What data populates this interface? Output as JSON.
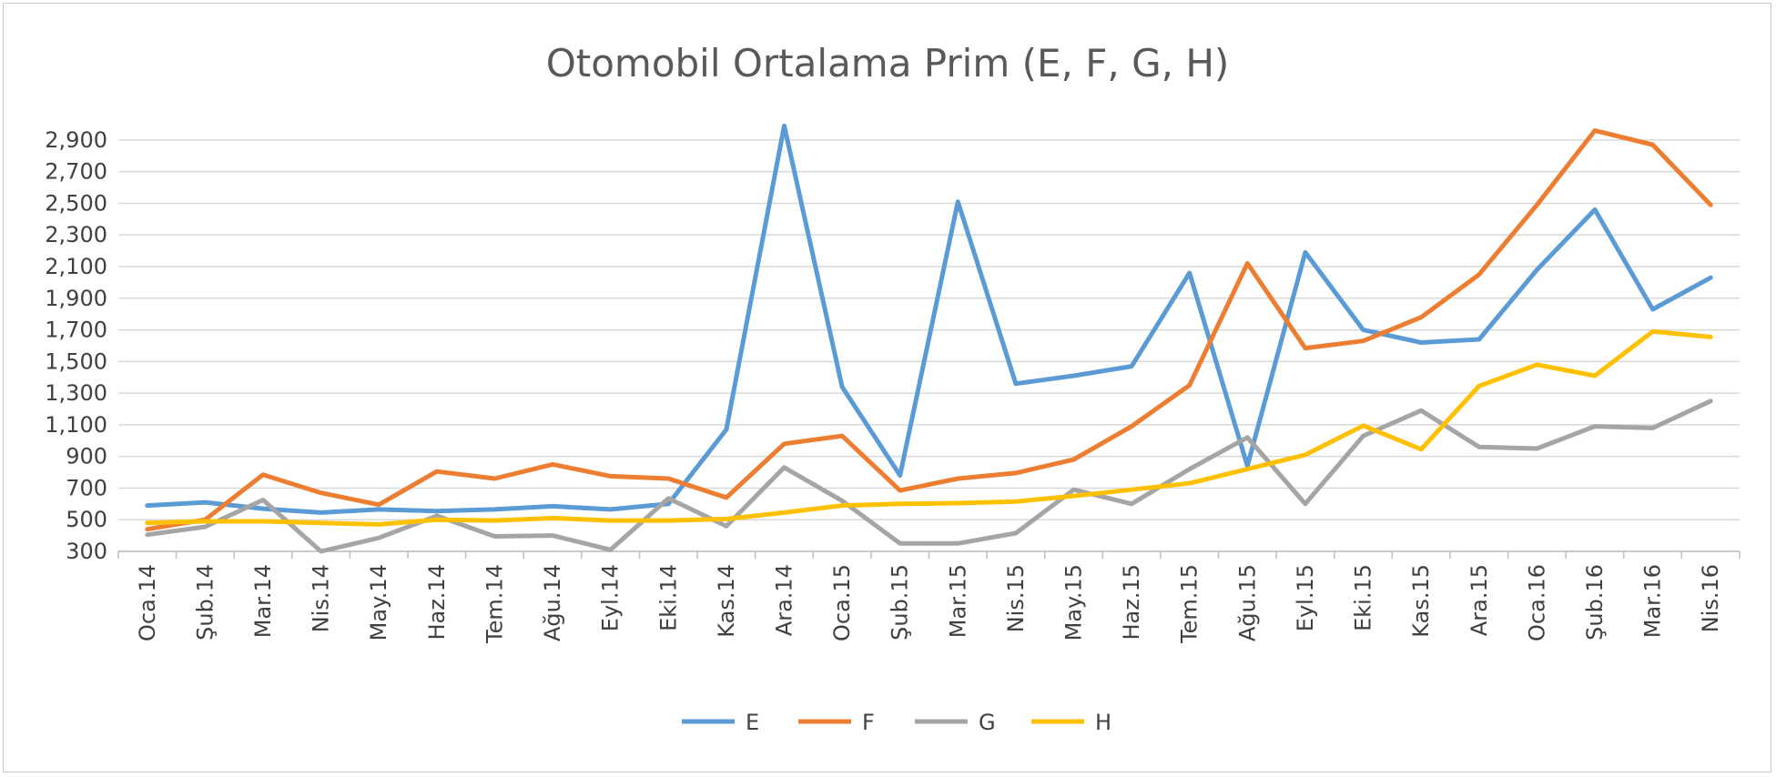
{
  "chart_data": {
    "type": "line",
    "title": "Otomobil Ortalama Prim (E, F, G, H)",
    "xlabel": "",
    "ylabel": "",
    "ylim": [
      300,
      3000
    ],
    "yticks": [
      300,
      500,
      700,
      900,
      1100,
      1300,
      1500,
      1700,
      1900,
      2100,
      2300,
      2500,
      2700,
      2900
    ],
    "ytick_labels": [
      "300",
      "500",
      "700",
      "900",
      "1,100",
      "1,300",
      "1,500",
      "1,700",
      "1,900",
      "2,100",
      "2,300",
      "2,500",
      "2,700",
      "2,900"
    ],
    "grid": true,
    "legend_position": "bottom",
    "categories": [
      "Oca.14",
      "Şub.14",
      "Mar.14",
      "Nis.14",
      "May.14",
      "Haz.14",
      "Tem.14",
      "Ağu.14",
      "Eyl.14",
      "Eki.14",
      "Kas.14",
      "Ara.14",
      "Oca.15",
      "Şub.15",
      "Mar.15",
      "Nis.15",
      "May.15",
      "Haz.15",
      "Tem.15",
      "Ağu.15",
      "Eyl.15",
      "Eki.15",
      "Kas.15",
      "Ara.15",
      "Oca.16",
      "Şub.16",
      "Mar.16",
      "Nis.16"
    ],
    "series": [
      {
        "name": "E",
        "color": "#5B9BD5",
        "values": [
          590,
          610,
          570,
          545,
          565,
          555,
          565,
          585,
          565,
          600,
          1070,
          2990,
          1340,
          780,
          2510,
          1360,
          1410,
          1470,
          2060,
          840,
          2190,
          1700,
          1620,
          1640,
          2080,
          2460,
          1830,
          2030
        ]
      },
      {
        "name": "F",
        "color": "#ED7D31",
        "values": [
          440,
          500,
          785,
          670,
          595,
          805,
          760,
          850,
          775,
          760,
          640,
          980,
          1030,
          685,
          760,
          795,
          880,
          1090,
          1350,
          2120,
          1585,
          1630,
          1780,
          2050,
          2490,
          2960,
          2870,
          2490
        ]
      },
      {
        "name": "G",
        "color": "#A5A5A5",
        "values": [
          405,
          455,
          625,
          300,
          385,
          525,
          395,
          400,
          310,
          635,
          460,
          830,
          620,
          350,
          350,
          415,
          690,
          600,
          820,
          1020,
          600,
          1030,
          1190,
          960,
          950,
          1090,
          1080,
          1250
        ]
      },
      {
        "name": "H",
        "color": "#FFC000",
        "values": [
          480,
          490,
          490,
          480,
          470,
          500,
          495,
          510,
          495,
          495,
          505,
          545,
          590,
          600,
          605,
          615,
          650,
          690,
          730,
          820,
          910,
          1095,
          945,
          1345,
          1480,
          1410,
          1690,
          1655
        ]
      }
    ]
  }
}
